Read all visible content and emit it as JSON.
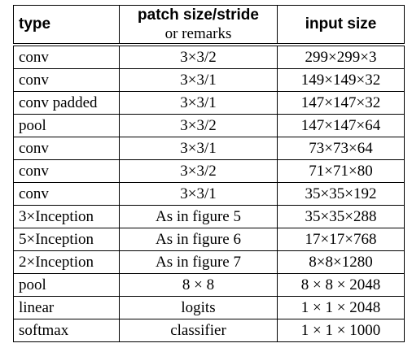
{
  "table": {
    "headers": {
      "type": "type",
      "patch_line1": "patch size/stride",
      "patch_line2": "or remarks",
      "input": "input size"
    },
    "rows": [
      {
        "type": "conv",
        "patch": "3×3/2",
        "input": "299×299×3"
      },
      {
        "type": "conv",
        "patch": "3×3/1",
        "input": "149×149×32"
      },
      {
        "type": "conv padded",
        "patch": "3×3/1",
        "input": "147×147×32"
      },
      {
        "type": "pool",
        "patch": "3×3/2",
        "input": "147×147×64"
      },
      {
        "type": "conv",
        "patch": "3×3/1",
        "input": "73×73×64"
      },
      {
        "type": "conv",
        "patch": "3×3/2",
        "input": "71×71×80"
      },
      {
        "type": "conv",
        "patch": "3×3/1",
        "input": "35×35×192"
      },
      {
        "type": "3×Inception",
        "patch": "As in figure 5",
        "input": "35×35×288"
      },
      {
        "type": "5×Inception",
        "patch": "As in figure 6",
        "input": "17×17×768"
      },
      {
        "type": "2×Inception",
        "patch": "As in figure 7",
        "input": "8×8×1280"
      },
      {
        "type": "pool",
        "patch": "8 × 8",
        "input": "8 × 8 × 2048"
      },
      {
        "type": "linear",
        "patch": "logits",
        "input": "1 × 1 × 2048"
      },
      {
        "type": "softmax",
        "patch": "classifier",
        "input": "1 × 1 × 1000"
      }
    ]
  }
}
